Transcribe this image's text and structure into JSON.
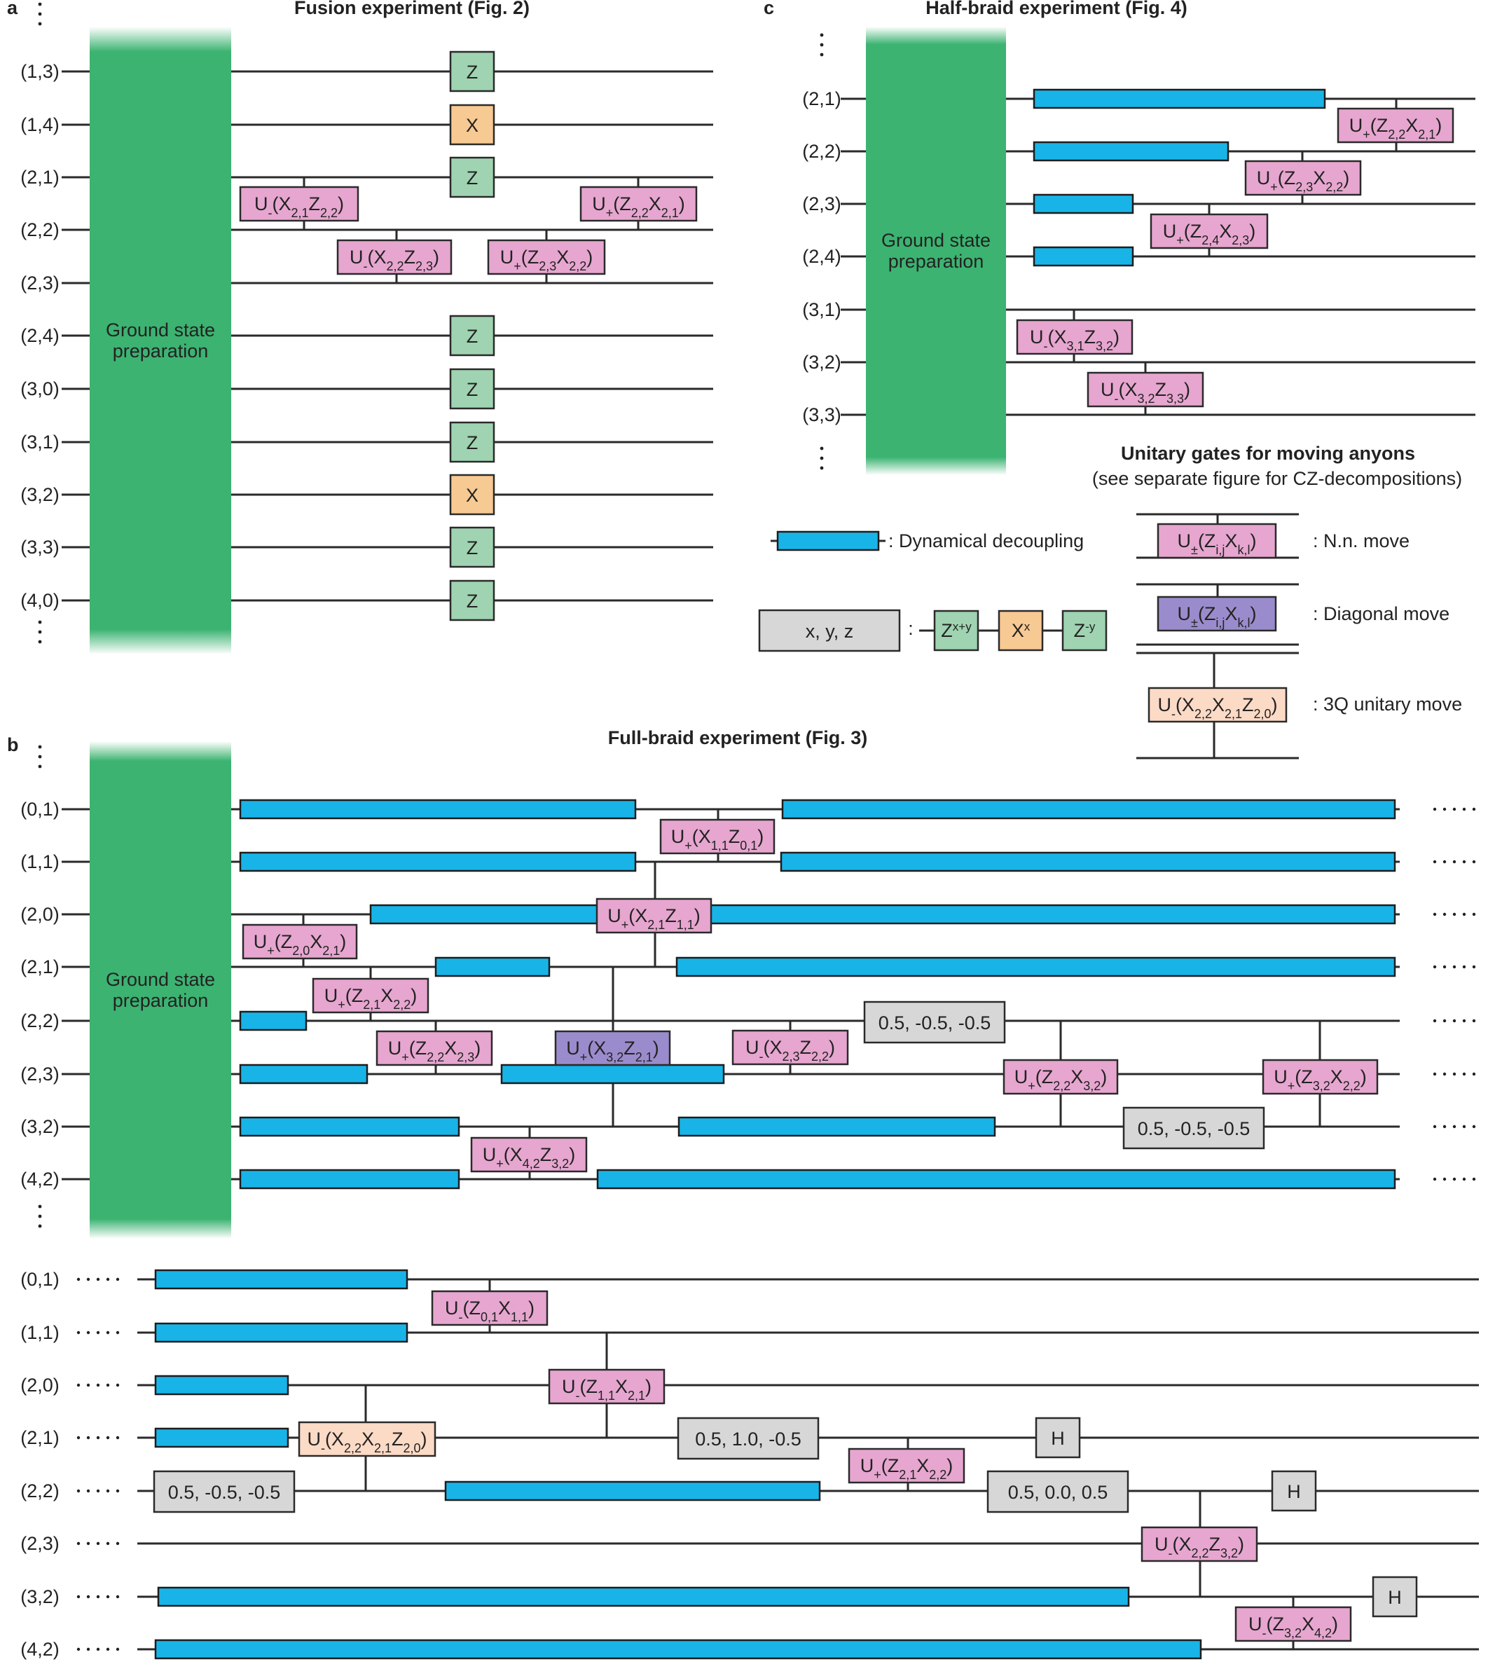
{
  "colors": {
    "ground": "#3cb371",
    "dd": "#18b4e8",
    "pink": "#e6a6cf",
    "purple": "#9a8ccc",
    "peach": "#fbdac6",
    "grey": "#d7d7d7",
    "green_gate": "#9fd3b1",
    "orange_gate": "#f7c993",
    "wire": "#2a2a2a"
  },
  "panel_a": {
    "letter": "a",
    "title": "Fusion experiment (Fig. 2)",
    "ground_label": [
      "Ground state",
      "preparation"
    ],
    "qubits": [
      "(1,3)",
      "(1,4)",
      "(2,1)",
      "(2,2)",
      "(2,3)",
      "(2,4)",
      "(3,0)",
      "(3,1)",
      "(3,2)",
      "(3,3)",
      "(4,0)"
    ],
    "measure_gates": [
      "Z",
      "X",
      "Z",
      "Z",
      "Z",
      "Z",
      "X",
      "Z",
      "Z"
    ],
    "gates": [
      {
        "html": "U<tspan baseline-shift='sub' font-size='18'>-</tspan>(X<tspan baseline-shift='sub' font-size='18'>2,1</tspan>Z<tspan baseline-shift='sub' font-size='18'>2,2</tspan>)"
      },
      {
        "html": "U<tspan baseline-shift='sub' font-size='18'>-</tspan>(X<tspan baseline-shift='sub' font-size='18'>2,2</tspan>Z<tspan baseline-shift='sub' font-size='18'>2,3</tspan>)"
      },
      {
        "html": "U<tspan baseline-shift='sub' font-size='18'>+</tspan>(Z<tspan baseline-shift='sub' font-size='18'>2,3</tspan>X<tspan baseline-shift='sub' font-size='18'>2,2</tspan>)"
      },
      {
        "html": "U<tspan baseline-shift='sub' font-size='18'>+</tspan>(Z<tspan baseline-shift='sub' font-size='18'>2,2</tspan>X<tspan baseline-shift='sub' font-size='18'>2,1</tspan>)"
      }
    ]
  },
  "panel_c": {
    "letter": "c",
    "title": "Half-braid experiment (Fig. 4)",
    "ground_label": [
      "Ground state",
      "preparation"
    ],
    "qubits": [
      "(2,1)",
      "(2,2)",
      "(2,3)",
      "(2,4)",
      "(3,1)",
      "(3,2)",
      "(3,3)"
    ],
    "gates": [
      {
        "html": "U<tspan baseline-shift='sub' font-size='18'>+</tspan>(Z<tspan baseline-shift='sub' font-size='18'>2,2</tspan>X<tspan baseline-shift='sub' font-size='18'>2,1</tspan>)"
      },
      {
        "html": "U<tspan baseline-shift='sub' font-size='18'>+</tspan>(Z<tspan baseline-shift='sub' font-size='18'>2,3</tspan>X<tspan baseline-shift='sub' font-size='18'>2,2</tspan>)"
      },
      {
        "html": "U<tspan baseline-shift='sub' font-size='18'>+</tspan>(Z<tspan baseline-shift='sub' font-size='18'>2,4</tspan>X<tspan baseline-shift='sub' font-size='18'>2,3</tspan>)"
      },
      {
        "html": "U<tspan baseline-shift='sub' font-size='18'>-</tspan>(X<tspan baseline-shift='sub' font-size='18'>3,1</tspan>Z<tspan baseline-shift='sub' font-size='18'>3,2</tspan>)"
      },
      {
        "html": "U<tspan baseline-shift='sub' font-size='18'>-</tspan>(X<tspan baseline-shift='sub' font-size='18'>3,2</tspan>Z<tspan baseline-shift='sub' font-size='18'>3,3</tspan>)"
      }
    ]
  },
  "legend": {
    "title": "Unitary gates for moving anyons",
    "subtitle": "(see separate figure for CZ-decompositions)",
    "dd_label": ": Dynamical decoupling",
    "xyz_box": "x, y, z",
    "colon": ":",
    "zxy_html": "Z<tspan baseline-shift='super' font-size='17'>x+y</tspan>",
    "xx_html": "X<tspan baseline-shift='super' font-size='17'>x</tspan>",
    "zy_html": "Z<tspan baseline-shift='super' font-size='17'>-y</tspan>",
    "nn_html": "U<tspan baseline-shift='sub' font-size='18'>±</tspan>(Z<tspan baseline-shift='sub' font-size='18'>i,j</tspan>X<tspan baseline-shift='sub' font-size='18'>k,l</tspan>)",
    "nn_label": ": N.n. move",
    "diag_html": "U<tspan baseline-shift='sub' font-size='18'>±</tspan>(Z<tspan baseline-shift='sub' font-size='18'>i,j</tspan>X<tspan baseline-shift='sub' font-size='18'>k,l</tspan>)",
    "diag_label": ": Diagonal move",
    "q3_html": "U<tspan baseline-shift='sub' font-size='18'>-</tspan>(X<tspan baseline-shift='sub' font-size='18'>2,2</tspan>X<tspan baseline-shift='sub' font-size='18'>2,1</tspan>Z<tspan baseline-shift='sub' font-size='18'>2,0</tspan>)",
    "q3_label": ": 3Q unitary move"
  },
  "panel_b": {
    "letter": "b",
    "title": "Full-braid experiment (Fig. 3)",
    "ground_label": [
      "Ground state",
      "preparation"
    ],
    "qubits": [
      "(0,1)",
      "(1,1)",
      "(2,0)",
      "(2,1)",
      "(2,2)",
      "(2,3)",
      "(3,2)",
      "(4,2)"
    ],
    "gates_top": [
      {
        "html": "U<tspan baseline-shift='sub' font-size='18'>+</tspan>(X<tspan baseline-shift='sub' font-size='18'>1,1</tspan>Z<tspan baseline-shift='sub' font-size='18'>0,1</tspan>)"
      },
      {
        "html": "U<tspan baseline-shift='sub' font-size='18'>+</tspan>(X<tspan baseline-shift='sub' font-size='18'>2,1</tspan>Z<tspan baseline-shift='sub' font-size='18'>1,1</tspan>)"
      },
      {
        "html": "U<tspan baseline-shift='sub' font-size='18'>+</tspan>(Z<tspan baseline-shift='sub' font-size='18'>2,0</tspan>X<tspan baseline-shift='sub' font-size='18'>2,1</tspan>)"
      },
      {
        "html": "U<tspan baseline-shift='sub' font-size='18'>+</tspan>(Z<tspan baseline-shift='sub' font-size='18'>2,1</tspan>X<tspan baseline-shift='sub' font-size='18'>2,2</tspan>)"
      },
      {
        "html": "U<tspan baseline-shift='sub' font-size='18'>+</tspan>(Z<tspan baseline-shift='sub' font-size='18'>2,2</tspan>X<tspan baseline-shift='sub' font-size='18'>2,3</tspan>)"
      },
      {
        "html": "U<tspan baseline-shift='sub' font-size='18'>+</tspan>(X<tspan baseline-shift='sub' font-size='18'>3,2</tspan>Z<tspan baseline-shift='sub' font-size='18'>2,1</tspan>)"
      },
      {
        "html": "U<tspan baseline-shift='sub' font-size='18'>-</tspan>(X<tspan baseline-shift='sub' font-size='18'>2,3</tspan>Z<tspan baseline-shift='sub' font-size='18'>2,2</tspan>)"
      },
      {
        "html": "U<tspan baseline-shift='sub' font-size='18'>+</tspan>(Z<tspan baseline-shift='sub' font-size='18'>2,2</tspan>X<tspan baseline-shift='sub' font-size='18'>3,2</tspan>)"
      },
      {
        "html": "U<tspan baseline-shift='sub' font-size='18'>+</tspan>(Z<tspan baseline-shift='sub' font-size='18'>3,2</tspan>X<tspan baseline-shift='sub' font-size='18'>2,2</tspan>)"
      },
      {
        "html": "U<tspan baseline-shift='sub' font-size='18'>+</tspan>(X<tspan baseline-shift='sub' font-size='18'>4,2</tspan>Z<tspan baseline-shift='sub' font-size='18'>3,2</tspan>)"
      }
    ],
    "rot_top": [
      "0.5, -0.5, -0.5",
      "0.5, -0.5, -0.5"
    ],
    "gates_bottom": [
      {
        "html": "U<tspan baseline-shift='sub' font-size='18'>-</tspan>(Z<tspan baseline-shift='sub' font-size='18'>0,1</tspan>X<tspan baseline-shift='sub' font-size='18'>1,1</tspan>)"
      },
      {
        "html": "U<tspan baseline-shift='sub' font-size='18'>-</tspan>(Z<tspan baseline-shift='sub' font-size='18'>1,1</tspan>X<tspan baseline-shift='sub' font-size='18'>2,1</tspan>)"
      },
      {
        "html": "U<tspan baseline-shift='sub' font-size='18'>-</tspan>(X<tspan baseline-shift='sub' font-size='18'>2,2</tspan>X<tspan baseline-shift='sub' font-size='18'>2,1</tspan>Z<tspan baseline-shift='sub' font-size='18'>2,0</tspan>)"
      },
      {
        "html": "U<tspan baseline-shift='sub' font-size='18'>+</tspan>(Z<tspan baseline-shift='sub' font-size='18'>2,1</tspan>X<tspan baseline-shift='sub' font-size='18'>2,2</tspan>)"
      },
      {
        "html": "U<tspan baseline-shift='sub' font-size='18'>-</tspan>(X<tspan baseline-shift='sub' font-size='18'>2,2</tspan>Z<tspan baseline-shift='sub' font-size='18'>3,2</tspan>)"
      },
      {
        "html": "U<tspan baseline-shift='sub' font-size='18'>-</tspan>(Z<tspan baseline-shift='sub' font-size='18'>3,2</tspan>X<tspan baseline-shift='sub' font-size='18'>4,2</tspan>)"
      }
    ],
    "rot_bottom": [
      "0.5, 1.0, -0.5",
      "0.5, -0.5, -0.5",
      "0.5, 0.0, 0.5"
    ],
    "h_gate": "H"
  }
}
